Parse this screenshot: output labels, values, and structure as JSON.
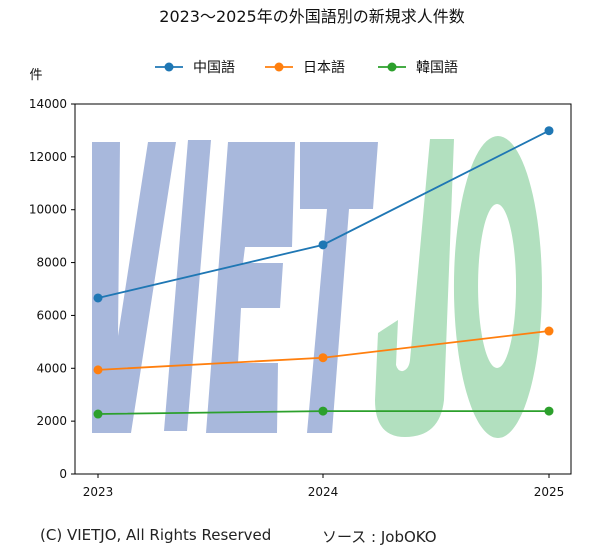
{
  "chart_data": {
    "type": "line",
    "title": "2023～2025年の外国語別の新規求人件数",
    "xlabel": "",
    "ylabel": "件",
    "categories": [
      "2023",
      "2024",
      "2025"
    ],
    "ylim": [
      0,
      14000
    ],
    "yticks": [
      0,
      2000,
      4000,
      6000,
      8000,
      10000,
      12000,
      14000
    ],
    "legend_position": "top",
    "grid": false,
    "series": [
      {
        "name": "中国語",
        "color": "#1f77b4",
        "values": [
          6660,
          8670,
          12990
        ]
      },
      {
        "name": "日本語",
        "color": "#ff7f0e",
        "values": [
          3940,
          4400,
          5410
        ]
      },
      {
        "name": "韓国語",
        "color": "#2ca02c",
        "values": [
          2270,
          2380,
          2380
        ]
      }
    ]
  },
  "watermark": {
    "part1": "VIET",
    "part2": "JO",
    "color1": "#a8b8dc",
    "color2": "#b2e0bf"
  },
  "footer": {
    "copyright": "(C) VIETJO, All Rights Reserved",
    "source": "ソース : JobOKO"
  }
}
